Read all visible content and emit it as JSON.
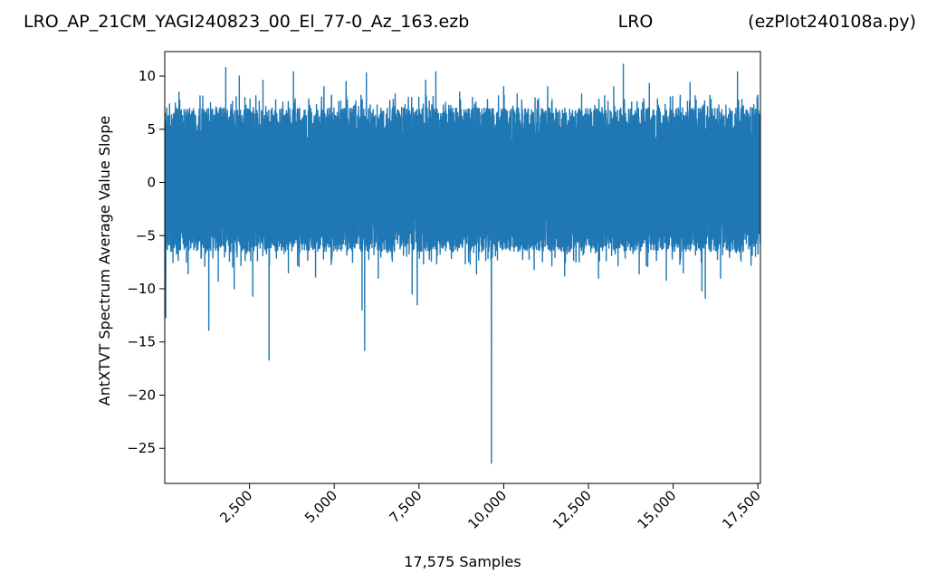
{
  "header": {
    "file_name": "LRO_AP_21CM_YAGI240823_00_El_77-0_Az_163.ezb",
    "station": "LRO",
    "program": "(ezPlot240108a.py)"
  },
  "chart_data": {
    "type": "line",
    "xlabel": "17,575 Samples",
    "ylabel": "AntXTVT Spectrum Average Value Slope",
    "xlim": [
      0,
      17575
    ],
    "ylim": [
      -28.3,
      12.3
    ],
    "x_ticks": [
      2500,
      5000,
      7500,
      10000,
      12500,
      15000,
      17500
    ],
    "x_tick_labels": [
      "2,500",
      "5,000",
      "7,500",
      "10,000",
      "12,500",
      "15,000",
      "17,500"
    ],
    "y_ticks": [
      10,
      5,
      0,
      -5,
      -10,
      -15,
      -20,
      -25
    ],
    "y_tick_labels": [
      "10",
      "5",
      "0",
      "−5",
      "−10",
      "−15",
      "−20",
      "−25"
    ],
    "grid": false,
    "series_color": "#1f77b4",
    "series": [
      {
        "n_samples": 17575,
        "typical_band": [
          -6.5,
          7.0
        ],
        "notable_points": [
          {
            "x": 30,
            "y": -12.7
          },
          {
            "x": 420,
            "y": 8.5
          },
          {
            "x": 690,
            "y": -8.6
          },
          {
            "x": 1300,
            "y": -13.9
          },
          {
            "x": 1580,
            "y": -9.3
          },
          {
            "x": 1800,
            "y": 10.8
          },
          {
            "x": 2050,
            "y": -10.0
          },
          {
            "x": 2200,
            "y": 10.0
          },
          {
            "x": 2600,
            "y": -10.7
          },
          {
            "x": 2900,
            "y": 9.6
          },
          {
            "x": 3080,
            "y": -16.7
          },
          {
            "x": 3650,
            "y": -8.5
          },
          {
            "x": 3800,
            "y": 10.4
          },
          {
            "x": 4450,
            "y": -8.9
          },
          {
            "x": 4700,
            "y": 9.0
          },
          {
            "x": 5350,
            "y": 9.5
          },
          {
            "x": 5820,
            "y": -12.0
          },
          {
            "x": 5900,
            "y": -15.8
          },
          {
            "x": 5950,
            "y": 10.3
          },
          {
            "x": 6300,
            "y": -9.0
          },
          {
            "x": 6800,
            "y": 8.3
          },
          {
            "x": 7300,
            "y": -10.5
          },
          {
            "x": 7450,
            "y": -11.5
          },
          {
            "x": 7700,
            "y": 9.6
          },
          {
            "x": 8000,
            "y": 10.4
          },
          {
            "x": 8700,
            "y": 8.5
          },
          {
            "x": 9200,
            "y": -8.6
          },
          {
            "x": 9640,
            "y": -26.4
          },
          {
            "x": 10000,
            "y": 9.0
          },
          {
            "x": 10400,
            "y": 8.3
          },
          {
            "x": 10900,
            "y": -8.2
          },
          {
            "x": 11300,
            "y": 9.0
          },
          {
            "x": 11800,
            "y": -8.8
          },
          {
            "x": 12300,
            "y": 8.3
          },
          {
            "x": 12800,
            "y": -9.0
          },
          {
            "x": 13250,
            "y": 9.0
          },
          {
            "x": 13530,
            "y": 11.1
          },
          {
            "x": 14000,
            "y": -8.6
          },
          {
            "x": 14300,
            "y": 9.3
          },
          {
            "x": 14800,
            "y": -9.2
          },
          {
            "x": 15300,
            "y": -8.5
          },
          {
            "x": 15500,
            "y": 9.4
          },
          {
            "x": 15850,
            "y": -10.2
          },
          {
            "x": 15950,
            "y": -10.9
          },
          {
            "x": 16400,
            "y": -9.0
          },
          {
            "x": 16900,
            "y": 10.4
          },
          {
            "x": 17300,
            "y": -7.8
          },
          {
            "x": 17500,
            "y": 8.2
          }
        ]
      }
    ]
  }
}
